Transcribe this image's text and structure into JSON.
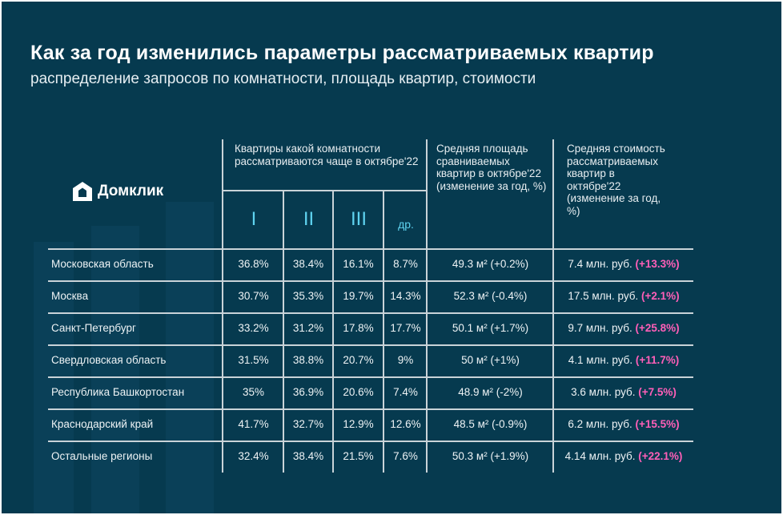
{
  "title": "Как за год изменились параметры рассматриваемых квартир",
  "subtitle": "распределение запросов по комнатности, площадь квартир, стоимости",
  "logo": "Домклик",
  "header": {
    "rooms_group": "Квартиры какой комнатности рассматриваются чаще в октябре'22",
    "rooms": [
      "I",
      "II",
      "III",
      "др."
    ],
    "area": "Средняя площадь сравниваемых квартир в октябре'22 (изменение за год, %)",
    "price": "Средняя стоимость рассматриваемых квартир в октябре'22 (изменение за год, %)"
  },
  "rows": [
    {
      "region": "Московская область",
      "r1": "36.8%",
      "r2": "38.4%",
      "r3": "16.1%",
      "other": "8.7%",
      "area": "49.3 м² (+0.2%)",
      "price": "7.4 млн. руб.",
      "price_change": "(+13.3%)"
    },
    {
      "region": "Москва",
      "r1": "30.7%",
      "r2": "35.3%",
      "r3": "19.7%",
      "other": "14.3%",
      "area": "52.3 м² (-0.4%)",
      "price": "17.5 млн. руб.",
      "price_change": "(+2.1%)"
    },
    {
      "region": "Санкт-Петербург",
      "r1": "33.2%",
      "r2": "31.2%",
      "r3": "17.8%",
      "other": "17.7%",
      "area": "50.1 м² (+1.7%)",
      "price": "9.7 млн. руб.",
      "price_change": "(+25.8%)"
    },
    {
      "region": "Свердловская область",
      "r1": "31.5%",
      "r2": "38.8%",
      "r3": "20.7%",
      "other": "9%",
      "area": "50 м² (+1%)",
      "price": "4.1 млн. руб.",
      "price_change": "(+11.7%)"
    },
    {
      "region": "Республика Башкортостан",
      "r1": "35%",
      "r2": "36.9%",
      "r3": "20.6%",
      "other": "7.4%",
      "area": "48.9 м² (-2%)",
      "price": "3.6 млн. руб.",
      "price_change": "(+7.5%)"
    },
    {
      "region": "Краснодарский край",
      "r1": "41.7%",
      "r2": "32.7%",
      "r3": "12.9%",
      "other": "12.6%",
      "area": "48.5 м² (-0.9%)",
      "price": "6.2 млн. руб.",
      "price_change": "(+15.5%)"
    },
    {
      "region": "Остальные регионы",
      "r1": "32.4%",
      "r2": "38.4%",
      "r3": "21.5%",
      "other": "7.6%",
      "area": "50.3 м² (+1.9%)",
      "price": "4.14 млн. руб.",
      "price_change": "(+22.1%)"
    }
  ]
}
